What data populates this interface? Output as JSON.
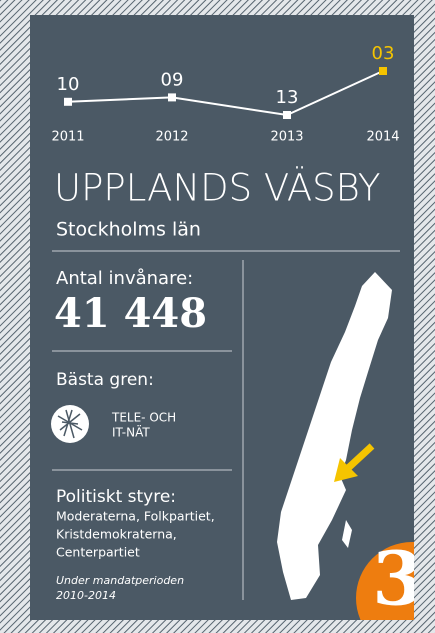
{
  "chart_data": {
    "type": "line",
    "categories": [
      "2011",
      "2012",
      "2013",
      "2014"
    ],
    "values": [
      10,
      9,
      13,
      3
    ],
    "value_labels": [
      "10",
      "09",
      "13",
      "03"
    ],
    "invert_y": true,
    "color": "#ffffff",
    "highlight_color": "#f5c400"
  },
  "municipality": "UPPLANDS VÄSBY",
  "county": "Stockholms län",
  "population_label": "Antal invånare:",
  "population": "41 448",
  "branch_label": "Bästa gren:",
  "branch": [
    "TELE- OCH",
    "IT-NÄT"
  ],
  "politics_label": "Politiskt styre:",
  "parties": [
    "Moderaterna, Folkpartiet,",
    "Kristdemokraterna,",
    "Centerpartiet"
  ],
  "period": [
    "Under mandatperioden",
    "2010-2014"
  ],
  "rank": "3"
}
